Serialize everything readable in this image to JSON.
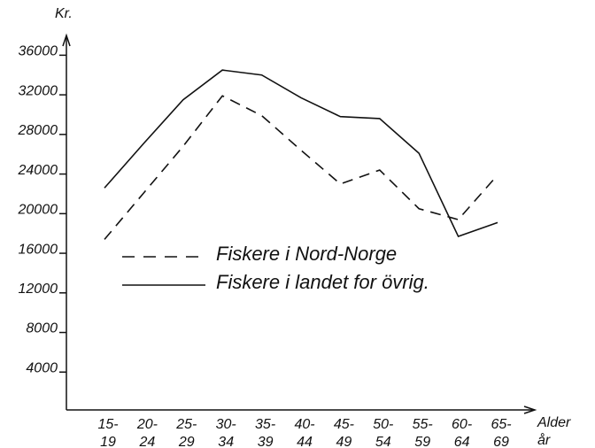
{
  "chart_data": {
    "type": "line",
    "y_label": "Kr.",
    "x_label": "Alder\når",
    "categories": [
      "15-\n19",
      "20-\n24",
      "25-\n29",
      "30-\n34",
      "35-\n39",
      "40-\n44",
      "45-\n49",
      "50-\n54",
      "55-\n59",
      "60-\n64",
      "65-\n69"
    ],
    "series": [
      {
        "name": "Fiskere i Nord-Norge",
        "color": "#111111",
        "dash": true,
        "values": [
          17400,
          22100,
          26800,
          31900,
          29900,
          26400,
          23000,
          24400,
          20500,
          19400,
          23900
        ]
      },
      {
        "name": "Fiskere i landet for övrig.",
        "color": "#111111",
        "dash": false,
        "values": [
          22600,
          27100,
          31500,
          34500,
          34000,
          31700,
          29800,
          29600,
          26100,
          17700,
          19100
        ]
      }
    ],
    "ylim": [
      0,
      38000
    ],
    "yticks": [
      4000,
      8000,
      12000,
      16000,
      20000,
      24000,
      28000,
      32000,
      36000
    ],
    "grid": false
  }
}
